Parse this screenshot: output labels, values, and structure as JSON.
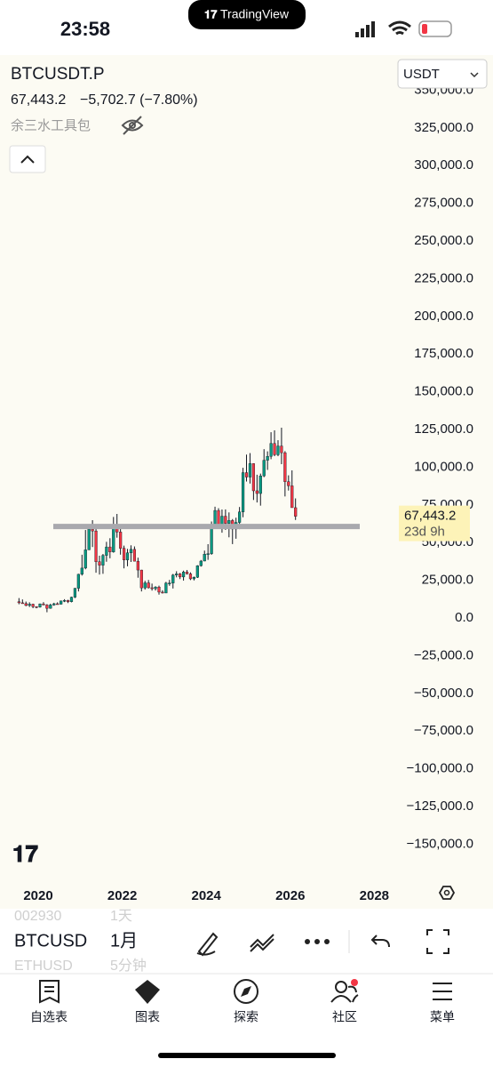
{
  "status_bar": {
    "time": "23:58",
    "app": "TradingView"
  },
  "header": {
    "symbol": "BTCUSDT.P",
    "price": "67,443.2",
    "change": "−5,702.7 (−7.80%)",
    "indicator": "余三水工具包",
    "currency": "USDT"
  },
  "chart_data": {
    "type": "candlestick",
    "up_color": "#089981",
    "down_color": "#f23645",
    "x": [
      "2019-07",
      "2019-08",
      "2019-09",
      "2019-10",
      "2019-11",
      "2019-12",
      "2020-01",
      "2020-02",
      "2020-03",
      "2020-04",
      "2020-05",
      "2020-06",
      "2020-07",
      "2020-08",
      "2020-09",
      "2020-10",
      "2020-11",
      "2020-12",
      "2021-01",
      "2021-02",
      "2021-03",
      "2021-04",
      "2021-05",
      "2021-06",
      "2021-07",
      "2021-08",
      "2021-09",
      "2021-10",
      "2021-11",
      "2021-12",
      "2022-01",
      "2022-02",
      "2022-03",
      "2022-04",
      "2022-05",
      "2022-06",
      "2022-07",
      "2022-08",
      "2022-09",
      "2022-10",
      "2022-11",
      "2022-12",
      "2023-01",
      "2023-02",
      "2023-03",
      "2023-04",
      "2023-05",
      "2023-06",
      "2023-07",
      "2023-08",
      "2023-09",
      "2023-10",
      "2023-11",
      "2023-12",
      "2024-01",
      "2024-02",
      "2024-03",
      "2024-04",
      "2024-05",
      "2024-06",
      "2024-07",
      "2024-08",
      "2024-09",
      "2024-10",
      "2024-11",
      "2024-12",
      "2025-01",
      "2025-02",
      "2025-03",
      "2025-04",
      "2025-05",
      "2025-06",
      "2025-07",
      "2025-08",
      "2025-09",
      "2025-10",
      "2025-11",
      "2025-12",
      "2026-01",
      "2026-02"
    ],
    "open": [
      10800,
      10080,
      9600,
      8300,
      9150,
      7550,
      7200,
      9350,
      8600,
      6400,
      8620,
      9450,
      9140,
      11350,
      11650,
      10780,
      13800,
      19700,
      28990,
      33100,
      45200,
      58800,
      57700,
      37300,
      35000,
      41500,
      47100,
      43800,
      61300,
      57000,
      46200,
      38500,
      43200,
      45500,
      37650,
      31800,
      19950,
      23300,
      20050,
      19430,
      20500,
      17150,
      16550,
      23150,
      23150,
      28500,
      29250,
      27200,
      30500,
      29250,
      25950,
      27000,
      34650,
      37750,
      42300,
      42600,
      61200,
      71300,
      60700,
      67500,
      62700,
      64650,
      59000,
      63350,
      70300,
      96400,
      93450,
      102400,
      84350,
      82550,
      94200,
      104600,
      107150,
      115750,
      108250,
      114050,
      109600,
      90350,
      87650,
      73145.9
    ],
    "high": [
      13200,
      12300,
      10900,
      10400,
      9500,
      7750,
      9580,
      10500,
      9200,
      9470,
      10080,
      10380,
      11450,
      12470,
      12070,
      14100,
      19900,
      29300,
      41950,
      58350,
      61800,
      64850,
      59500,
      41300,
      42450,
      50500,
      52900,
      67000,
      69000,
      59050,
      47990,
      45800,
      48200,
      47450,
      40000,
      31950,
      24650,
      25200,
      22800,
      21100,
      21450,
      18400,
      23950,
      25250,
      29200,
      31000,
      29850,
      31400,
      31800,
      30250,
      27500,
      35000,
      38450,
      44700,
      48950,
      64000,
      73800,
      72800,
      71950,
      72000,
      70000,
      65600,
      66500,
      73600,
      99600,
      108350,
      109350,
      102500,
      95000,
      95750,
      111950,
      110500,
      123200,
      124450,
      117900,
      126200,
      110650,
      94600,
      97900,
      79300
    ],
    "low": [
      9100,
      9400,
      7800,
      7300,
      6500,
      6430,
      6860,
      8450,
      3800,
      6150,
      8120,
      8850,
      8950,
      10520,
      9880,
      10370,
      13200,
      17600,
      28130,
      32300,
      45000,
      47050,
      30000,
      28800,
      29300,
      37300,
      39600,
      43300,
      53250,
      42000,
      32900,
      34300,
      37150,
      37700,
      26700,
      17600,
      18800,
      19550,
      18150,
      18200,
      15500,
      16250,
      16500,
      21350,
      19550,
      26950,
      25800,
      24800,
      28850,
      25150,
      24900,
      26550,
      34100,
      37650,
      38550,
      41900,
      59000,
      59200,
      56550,
      58400,
      53500,
      49000,
      52550,
      58900,
      66800,
      90500,
      89150,
      78250,
      76600,
      74500,
      93400,
      98200,
      105300,
      107300,
      107300,
      102000,
      80600,
      84500,
      74500,
      65000
    ],
    "close": [
      10080,
      9600,
      8300,
      9150,
      7550,
      7200,
      9350,
      8600,
      6400,
      8620,
      9450,
      9140,
      11350,
      11650,
      10780,
      13800,
      19700,
      28990,
      33100,
      45200,
      58800,
      57700,
      37300,
      35000,
      41500,
      47100,
      43800,
      61300,
      57000,
      46200,
      38500,
      43200,
      45500,
      37650,
      31800,
      19950,
      23300,
      20050,
      19430,
      20500,
      17150,
      16550,
      23150,
      23150,
      28500,
      29250,
      27200,
      30500,
      29250,
      25950,
      27000,
      34650,
      37750,
      42300,
      42600,
      61200,
      71300,
      60700,
      67500,
      62700,
      64650,
      59000,
      63350,
      70300,
      96400,
      93450,
      102400,
      84350,
      82550,
      94200,
      104600,
      107150,
      115750,
      108250,
      114050,
      109600,
      90350,
      87650,
      73145.9,
      67443.2
    ],
    "hline": {
      "value": 60700,
      "color": "#a9a9ae"
    },
    "last_price": {
      "value": 67443.2,
      "label": "67,443.2"
    },
    "countdown": "23d 9h",
    "xlim": [
      2019.09,
      2028.5
    ],
    "ylim": [
      -171000,
      371500
    ],
    "xticks": [
      2020,
      2022,
      2024,
      2026,
      2028
    ],
    "yticks": [
      {
        "value": 350000,
        "label": "350,000.0"
      },
      {
        "value": 325000,
        "label": "325,000.0"
      },
      {
        "value": 300000,
        "label": "300,000.0"
      },
      {
        "value": 275000,
        "label": "275,000.0"
      },
      {
        "value": 250000,
        "label": "250,000.0"
      },
      {
        "value": 225000,
        "label": "225,000.0"
      },
      {
        "value": 200000,
        "label": "200,000.0"
      },
      {
        "value": 175000,
        "label": "175,000.0"
      },
      {
        "value": 150000,
        "label": "150,000.0"
      },
      {
        "value": 125000,
        "label": "125,000.0"
      },
      {
        "value": 100000,
        "label": "100,000.0"
      },
      {
        "value": 75000,
        "label": "75,000.0"
      },
      {
        "value": 50000,
        "label": "50,000.0"
      },
      {
        "value": 25000,
        "label": "25,000.0"
      },
      {
        "value": 0,
        "label": "0.0"
      },
      {
        "value": -25000,
        "label": "−25,000.0"
      },
      {
        "value": -50000,
        "label": "−50,000.0"
      },
      {
        "value": -75000,
        "label": "−75,000.0"
      },
      {
        "value": -100000,
        "label": "−100,000.0"
      },
      {
        "value": -125000,
        "label": "−125,000.0"
      },
      {
        "value": -150000,
        "label": "−150,000.0"
      }
    ]
  },
  "watchlist": [
    {
      "symbol": "002930",
      "interval": "1天"
    },
    {
      "symbol": "BTCUSD",
      "interval": "1月"
    },
    {
      "symbol": "ETHUSD",
      "interval": "5分钟"
    }
  ],
  "nav": [
    "自选表",
    "图表",
    "探索",
    "社区",
    "菜单"
  ]
}
